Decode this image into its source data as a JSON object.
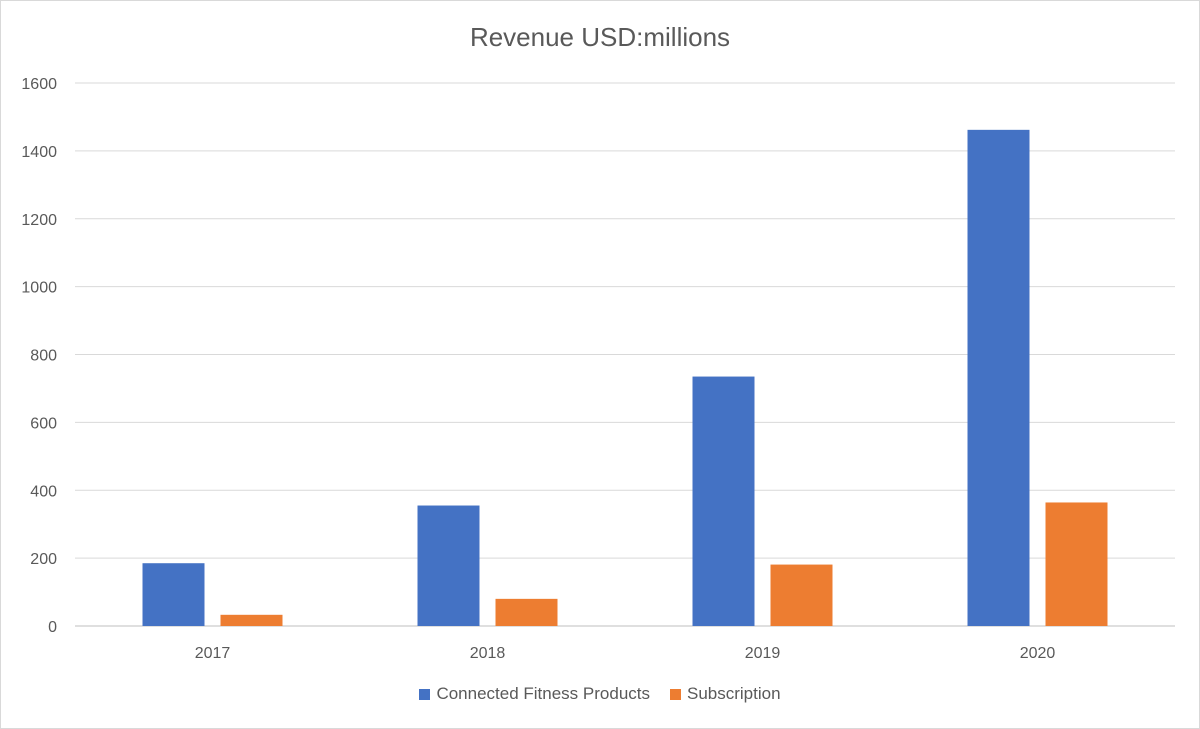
{
  "chart_data": {
    "type": "bar",
    "title": "Revenue USD:millions",
    "xlabel": "",
    "ylabel": "",
    "categories": [
      "2017",
      "2018",
      "2019",
      "2020"
    ],
    "series": [
      {
        "name": "Connected Fitness Products",
        "values": [
          185,
          355,
          735,
          1462
        ],
        "color": "#4472C4"
      },
      {
        "name": "Subscription",
        "values": [
          33,
          80,
          181,
          364
        ],
        "color": "#ED7D31"
      }
    ],
    "ylim": [
      0,
      1600
    ],
    "yticks": [
      "0",
      "200",
      "400",
      "600",
      "800",
      "1000",
      "1200",
      "1400",
      "1600"
    ],
    "grid": true,
    "legend_position": "bottom"
  }
}
